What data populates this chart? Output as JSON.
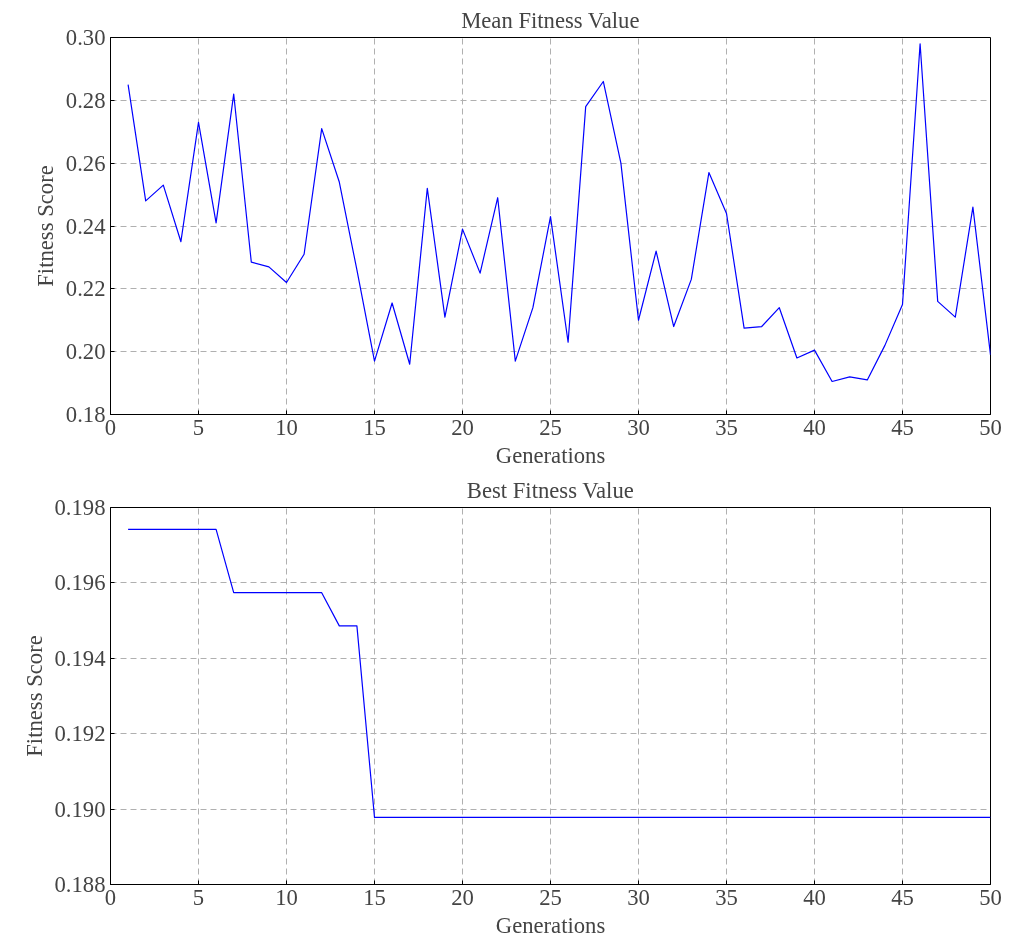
{
  "chart_data": [
    {
      "type": "line",
      "title": "Mean Fitness Value",
      "xlabel": "Generations",
      "ylabel": "Fitness Score",
      "grid": true,
      "line_style": "solid",
      "marker": "none",
      "x": [
        1,
        2,
        3,
        4,
        5,
        6,
        7,
        8,
        9,
        10,
        11,
        12,
        13,
        14,
        15,
        16,
        17,
        18,
        19,
        20,
        21,
        22,
        23,
        24,
        25,
        26,
        27,
        28,
        29,
        30,
        31,
        32,
        33,
        34,
        35,
        36,
        37,
        38,
        39,
        40,
        41,
        42,
        43,
        44,
        45,
        46,
        47,
        48,
        49,
        50
      ],
      "series": [
        {
          "color": "#0000ff",
          "values": [
            0.285,
            0.248,
            0.253,
            0.235,
            0.273,
            0.241,
            0.282,
            0.2285,
            0.227,
            0.222,
            0.231,
            0.271,
            0.254,
            0.226,
            0.197,
            0.2155,
            0.196,
            0.252,
            0.211,
            0.239,
            0.225,
            0.249,
            0.197,
            0.214,
            0.243,
            0.203,
            0.278,
            0.286,
            0.26,
            0.21,
            0.232,
            0.208,
            0.223,
            0.257,
            0.244,
            0.2075,
            0.208,
            0.214,
            0.198,
            0.2005,
            0.1905,
            0.192,
            0.191,
            0.202,
            0.215,
            0.298,
            0.216,
            0.211,
            0.246,
            0.199
          ]
        }
      ],
      "xlim": [
        0,
        50
      ],
      "xticks": [
        0,
        5,
        10,
        15,
        20,
        25,
        30,
        35,
        40,
        45,
        50
      ],
      "ylim": [
        0.18,
        0.3
      ],
      "yticks": [
        {
          "value": 0.18,
          "label": "0.18"
        },
        {
          "value": 0.2,
          "label": "0.20"
        },
        {
          "value": 0.22,
          "label": "0.22"
        },
        {
          "value": 0.24,
          "label": "0.24"
        },
        {
          "value": 0.26,
          "label": "0.26"
        },
        {
          "value": 0.28,
          "label": "0.28"
        },
        {
          "value": 0.3,
          "label": "0.30"
        }
      ]
    },
    {
      "type": "line",
      "title": "Best Fitness Value",
      "xlabel": "Generations",
      "ylabel": "Fitness Score",
      "grid": true,
      "line_style": "solid",
      "marker": "none",
      "x": [
        1,
        2,
        3,
        4,
        5,
        6,
        7,
        8,
        9,
        10,
        11,
        12,
        13,
        14,
        15,
        16,
        17,
        18,
        19,
        20,
        21,
        22,
        23,
        24,
        25,
        26,
        27,
        28,
        29,
        30,
        31,
        32,
        33,
        34,
        35,
        36,
        37,
        38,
        39,
        40,
        41,
        42,
        43,
        44,
        45,
        46,
        47,
        48,
        49,
        50
      ],
      "series": [
        {
          "color": "#0000ff",
          "values": [
            0.19742,
            0.19742,
            0.19742,
            0.19742,
            0.19742,
            0.19742,
            0.19574,
            0.19574,
            0.19574,
            0.19574,
            0.19574,
            0.19574,
            0.19486,
            0.19486,
            0.18978,
            0.18978,
            0.18978,
            0.18978,
            0.18978,
            0.18978,
            0.18978,
            0.18978,
            0.18978,
            0.18978,
            0.18978,
            0.18978,
            0.18978,
            0.18978,
            0.18978,
            0.18978,
            0.18978,
            0.18978,
            0.18978,
            0.18978,
            0.18978,
            0.18978,
            0.18978,
            0.18978,
            0.18978,
            0.18978,
            0.18978,
            0.18978,
            0.18978,
            0.18978,
            0.18978,
            0.18978,
            0.18978,
            0.18978,
            0.18978,
            0.18978
          ]
        }
      ],
      "xlim": [
        0,
        50
      ],
      "xticks": [
        0,
        5,
        10,
        15,
        20,
        25,
        30,
        35,
        40,
        45,
        50
      ],
      "ylim": [
        0.188,
        0.198
      ],
      "yticks": [
        0.188,
        {
          "value": 0.19,
          "label": "0.190"
        },
        0.192,
        0.194,
        0.196,
        0.198
      ]
    }
  ]
}
